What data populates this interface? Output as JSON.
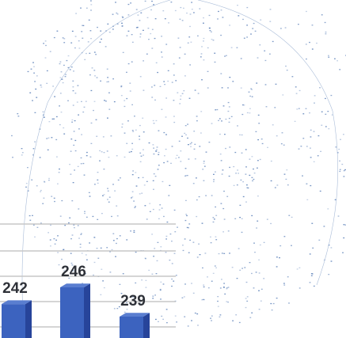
{
  "chart_data": {
    "type": "bar",
    "categories": [
      "",
      "",
      ""
    ],
    "values": [
      242,
      246,
      239
    ],
    "data_labels": [
      "242",
      "246",
      "239"
    ],
    "title": "",
    "xlabel": "",
    "ylabel": "",
    "grid": true,
    "style": "3d-columns",
    "colors": {
      "bar": "#3c63bf",
      "bar_side": "#27449a",
      "gridline": "#c7c7c7",
      "globe": "#5a7fb8"
    }
  },
  "background": {
    "decoration": "dotted-globe-network"
  }
}
